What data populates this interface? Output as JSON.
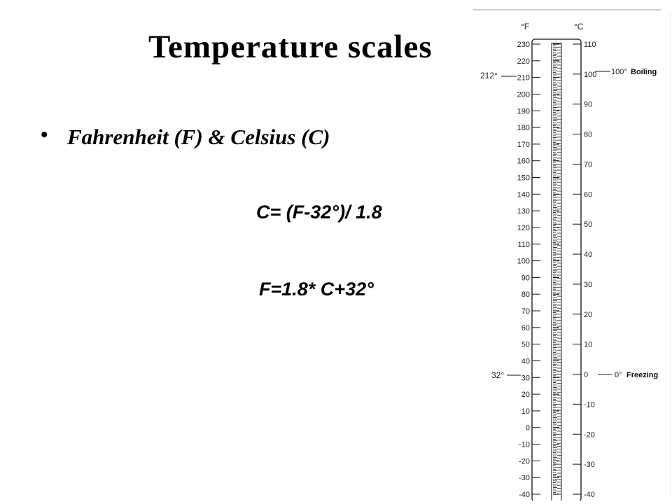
{
  "slide": {
    "title": "Temperature scales",
    "bullet": "Fahrenheit (F) & Celsius (C)",
    "formula_c": "C= (F-32°)/ 1.8",
    "formula_f": "F=1.8* C+32°"
  },
  "thermometer": {
    "f_unit": "°F",
    "c_unit": "°C",
    "f_labels": [
      "230",
      "220",
      "210",
      "200",
      "190",
      "180",
      "170",
      "160",
      "150",
      "140",
      "130",
      "120",
      "110",
      "100",
      "90",
      "80",
      "70",
      "60",
      "50",
      "40",
      "30",
      "20",
      "10",
      "0",
      "-10",
      "-20",
      "-30",
      "-40"
    ],
    "c_labels": [
      "110",
      "100",
      "90",
      "80",
      "70",
      "60",
      "50",
      "40",
      "30",
      "20",
      "10",
      "0",
      "-10",
      "-20",
      "-30",
      "-40"
    ],
    "boiling_f": "212°",
    "boiling_c": "100°",
    "boiling_label": "Boiling",
    "freezing_f": "32°",
    "freezing_c": "0°",
    "freezing_label": "Freezing"
  }
}
